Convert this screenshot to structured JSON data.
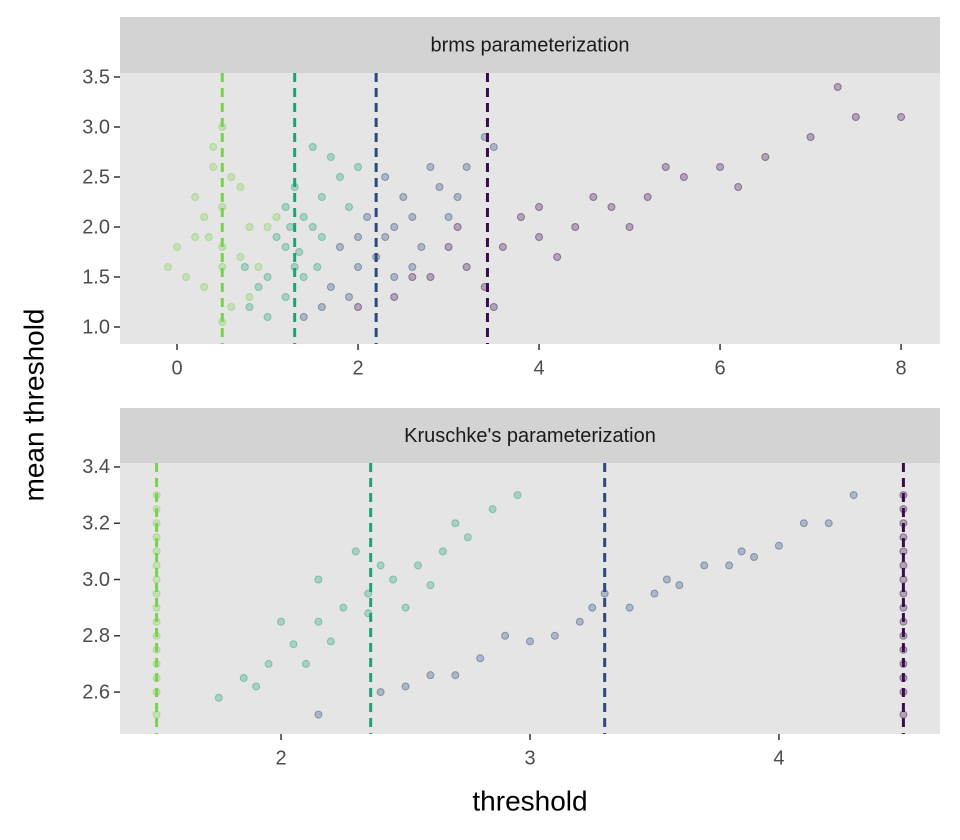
{
  "xlabel": "threshold",
  "ylabel": "mean threshold",
  "chart_data": [
    {
      "type": "scatter",
      "title": "brms parameterization",
      "xlim": [
        -0.63,
        8.43
      ],
      "xticks": [
        0,
        2,
        4,
        6,
        8
      ],
      "ylim": [
        0.83,
        3.54
      ],
      "yticks": [
        {
          "value": 1,
          "label": "1.0"
        },
        1.5,
        {
          "value": 2,
          "label": "2.0"
        },
        2.5,
        {
          "value": 3,
          "label": "3.0"
        },
        3.5
      ],
      "grid": false,
      "series": [
        {
          "color": "#7ad151",
          "vline": 0.5,
          "x": [
            0.1,
            0.3,
            0.5,
            0.7,
            0.9,
            0.2,
            0.4,
            0.6,
            0.8,
            0.5,
            0.3,
            0.7,
            0.0,
            1.0,
            0.5,
            0.4,
            0.6,
            0.2,
            0.8,
            0.5,
            -0.1,
            1.1,
            0.5,
            0.35
          ],
          "values": [
            1.5,
            2.1,
            1.8,
            2.4,
            1.6,
            1.9,
            2.6,
            1.2,
            2.0,
            2.2,
            1.4,
            1.7,
            1.8,
            2.0,
            1.05,
            2.8,
            2.5,
            2.3,
            1.3,
            1.6,
            1.6,
            2.1,
            3.0,
            1.9
          ]
        },
        {
          "color": "#22a07a",
          "vline": 1.3,
          "x": [
            0.8,
            1.0,
            1.2,
            1.4,
            1.6,
            1.8,
            1.1,
            1.3,
            1.5,
            1.7,
            0.9,
            1.2,
            1.4,
            1.6,
            1.3,
            1.0,
            1.9,
            1.5,
            1.2,
            1.35,
            2.0,
            0.75,
            1.55,
            1.25
          ],
          "values": [
            1.2,
            1.5,
            1.8,
            2.1,
            2.3,
            2.5,
            1.9,
            1.6,
            2.0,
            2.7,
            1.4,
            2.2,
            1.5,
            1.9,
            2.4,
            1.1,
            2.2,
            2.8,
            1.3,
            1.75,
            2.6,
            1.6,
            1.6,
            2.0
          ]
        },
        {
          "color": "#2c4a7c",
          "vline": 2.2,
          "x": [
            1.4,
            1.7,
            2.0,
            2.3,
            2.6,
            2.9,
            3.2,
            1.8,
            2.1,
            2.4,
            2.7,
            3.0,
            2.2,
            2.5,
            1.9,
            2.8,
            3.4,
            1.6,
            2.3,
            2.0,
            3.1,
            2.6,
            2.4,
            3.5
          ],
          "values": [
            1.1,
            1.4,
            1.6,
            1.9,
            2.1,
            2.4,
            2.6,
            1.8,
            2.1,
            1.5,
            1.8,
            2.1,
            1.7,
            2.3,
            1.3,
            2.6,
            2.9,
            1.2,
            2.5,
            1.9,
            2.3,
            1.6,
            2.0,
            2.8
          ]
        },
        {
          "color": "#3a0c4e",
          "vline": 3.43,
          "x": [
            2.0,
            2.4,
            2.8,
            3.2,
            3.6,
            4.0,
            4.4,
            4.8,
            5.2,
            5.6,
            6.0,
            6.5,
            7.0,
            7.5,
            3.0,
            3.4,
            3.8,
            4.2,
            2.6,
            3.5,
            4.6,
            5.4,
            8.0,
            3.1,
            4.0,
            5.0,
            6.2,
            7.3
          ],
          "values": [
            1.2,
            1.3,
            1.5,
            1.6,
            1.8,
            1.9,
            2.0,
            2.2,
            2.3,
            2.5,
            2.6,
            2.7,
            2.9,
            3.1,
            1.8,
            1.4,
            2.1,
            1.7,
            1.5,
            1.2,
            2.3,
            2.6,
            3.1,
            2.0,
            2.2,
            2.0,
            2.4,
            3.4
          ]
        }
      ]
    },
    {
      "type": "scatter",
      "title": "Kruschke's parameterization",
      "xlim": [
        1.353,
        4.647
      ],
      "xticks": [
        2,
        3,
        4
      ],
      "ylim": [
        2.451,
        3.414
      ],
      "yticks": [
        2.6,
        2.8,
        {
          "value": 3,
          "label": "3.0"
        },
        3.2,
        3.4
      ],
      "grid": false,
      "series": [
        {
          "color": "#7ad151",
          "vline": 1.5,
          "x": [
            1.5,
            1.5,
            1.5,
            1.5,
            1.5,
            1.5,
            1.5,
            1.5,
            1.5,
            1.5,
            1.5,
            1.5,
            1.5,
            1.5,
            1.5,
            1.5
          ],
          "values": [
            2.52,
            2.6,
            2.7,
            2.8,
            2.9,
            3.0,
            3.1,
            3.2,
            3.3,
            2.65,
            2.75,
            2.85,
            2.95,
            3.05,
            3.15,
            3.25
          ]
        },
        {
          "color": "#22a07a",
          "vline": 2.36,
          "x": [
            1.75,
            1.85,
            1.95,
            2.05,
            2.15,
            2.25,
            2.35,
            2.45,
            2.55,
            2.65,
            2.75,
            2.85,
            2.0,
            2.2,
            2.4,
            2.6,
            2.1,
            2.3,
            2.5,
            1.9,
            2.7,
            2.95,
            2.35,
            2.15
          ],
          "values": [
            2.58,
            2.65,
            2.7,
            2.77,
            2.85,
            2.9,
            2.95,
            3.0,
            3.05,
            3.1,
            3.15,
            3.25,
            2.85,
            2.78,
            3.05,
            2.98,
            2.7,
            3.1,
            2.9,
            2.62,
            3.2,
            3.3,
            2.88,
            3.0
          ]
        },
        {
          "color": "#2c4a7c",
          "vline": 3.3,
          "x": [
            2.15,
            2.4,
            2.6,
            2.8,
            3.0,
            3.2,
            3.4,
            3.6,
            3.8,
            4.0,
            4.2,
            4.3,
            2.9,
            3.1,
            3.3,
            3.5,
            3.7,
            3.9,
            2.7,
            3.25,
            3.55,
            3.85,
            4.1,
            2.5
          ],
          "values": [
            2.52,
            2.6,
            2.66,
            2.72,
            2.78,
            2.85,
            2.9,
            2.98,
            3.05,
            3.12,
            3.2,
            3.3,
            2.8,
            2.8,
            2.95,
            2.95,
            3.05,
            3.08,
            2.66,
            2.9,
            3.0,
            3.1,
            3.2,
            2.62
          ]
        },
        {
          "color": "#3a0c4e",
          "vline": 4.5,
          "x": [
            4.5,
            4.5,
            4.5,
            4.5,
            4.5,
            4.5,
            4.5,
            4.5,
            4.5,
            4.5,
            4.5,
            4.5,
            4.5,
            4.5,
            4.5,
            4.5
          ],
          "values": [
            2.52,
            2.6,
            2.7,
            2.8,
            2.9,
            3.0,
            3.1,
            3.2,
            3.3,
            2.65,
            2.75,
            2.85,
            2.95,
            3.05,
            3.15,
            3.25
          ]
        }
      ]
    }
  ]
}
